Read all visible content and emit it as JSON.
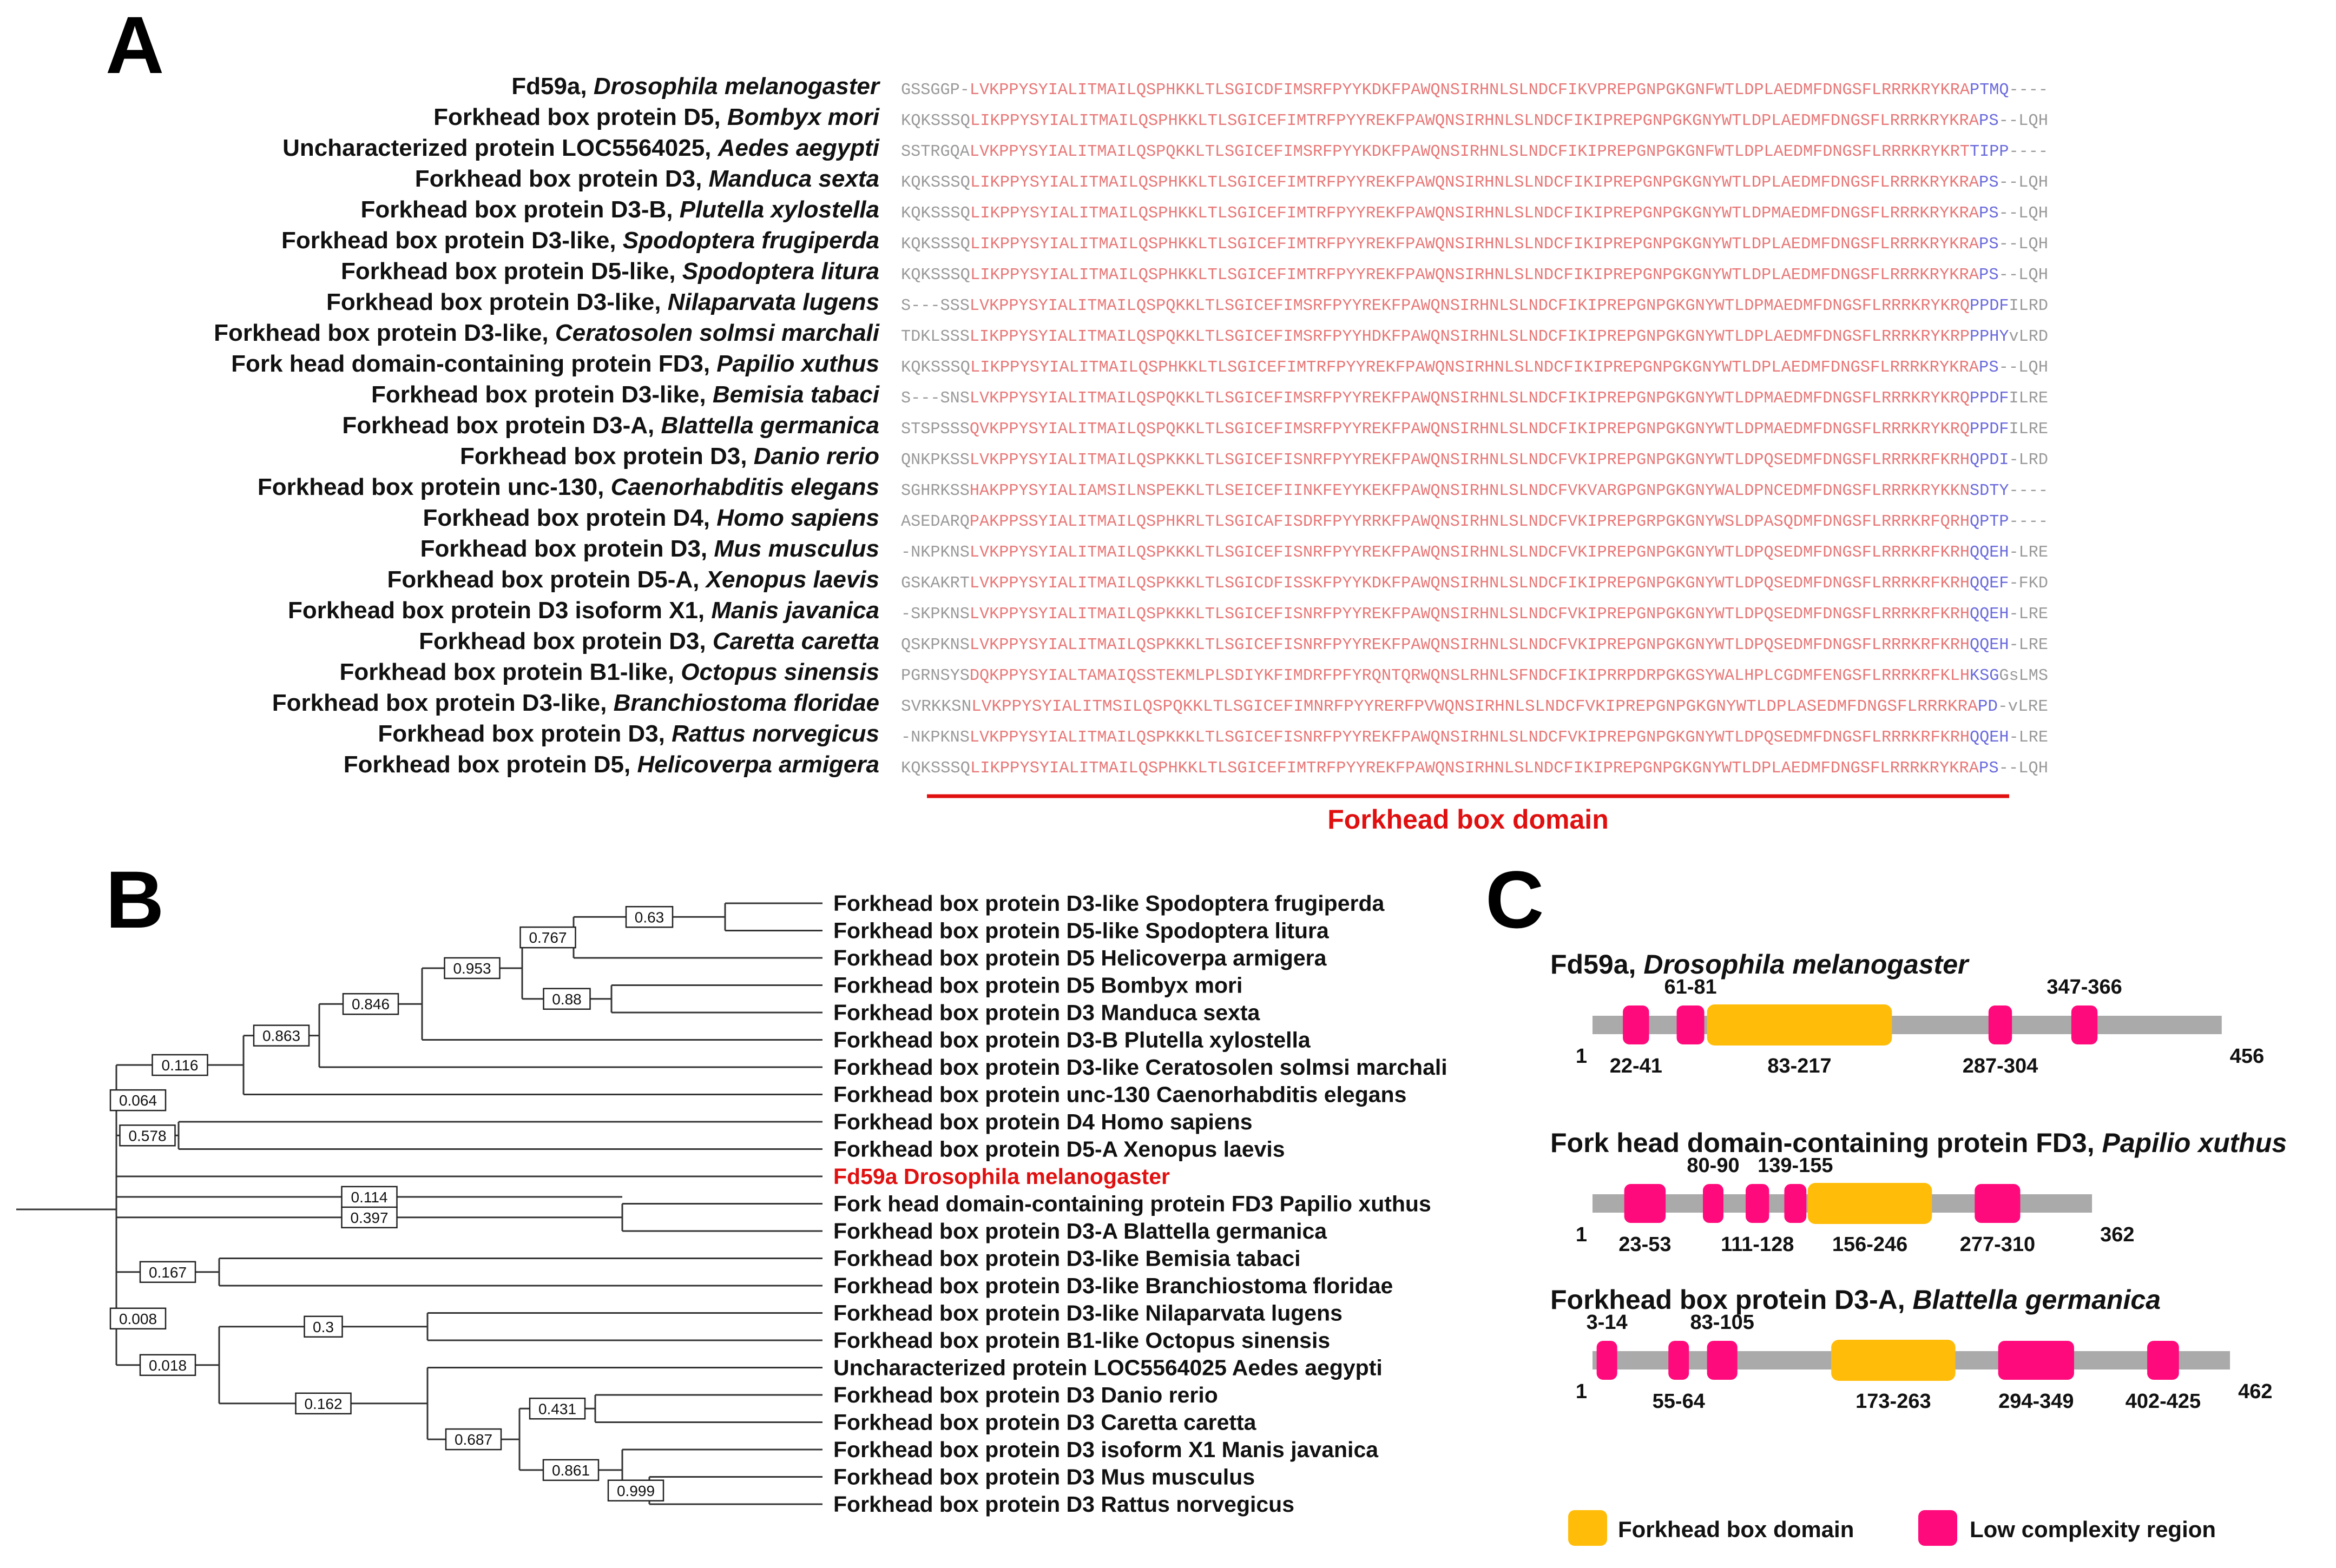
{
  "figure": {
    "panel_a_letter": "A",
    "panel_b_letter": "B",
    "panel_c_letter": "C",
    "colors": {
      "alignment_conserved": "#e87878",
      "alignment_variable": "#9a9a9a",
      "alignment_blue": "#6a6adc",
      "domain_bar": "#e01010",
      "forkhead_domain": "#ffbd0a",
      "low_complexity": "#ff0a7c",
      "protein_backbone": "#aaaaaa",
      "highlight_label": "#e01010"
    }
  },
  "alignment": {
    "domain_label": "Forkhead box domain",
    "rows": [
      {
        "name": "Fd59a,",
        "species": "Drosophila melanogaster",
        "pre": "GSSGGP-",
        "core": "LVKPPYSYIALITMAILQSPHKKLTLSGICDFIMSRFPYYKDKFPAWQNSIRHNLSLNDCFIKVPREPGNPGKGNFWTLDPLAEDMFDNGSFLRRRKRYKRA",
        "blue": "PTMQ",
        "post": "----"
      },
      {
        "name": "Forkhead box protein D5,",
        "species": "Bombyx mori",
        "pre": "KQKSSSQ",
        "core": "LIKPPYSYIALITMAILQSPHKKLTLSGICEFIMTRFPYYREKFPAWQNSIRHNLSLNDCFIKIPREPGNPGKGNYWTLDPLAEDMFDNGSFLRRRKRYKRA",
        "blue": "PS",
        "post": "--LQH"
      },
      {
        "name": "Uncharacterized protein LOC5564025,",
        "species": "Aedes aegypti",
        "pre": "SSTRGQA",
        "core": "LVKPPYSYIALITMAILQSPQKKLTLSGICEFIMSRFPYYKDKFPAWQNSIRHNLSLNDCFIKIPREPGNPGKGNFWTLDPLAEDMFDNGSFLRRRKRYKRT",
        "blue": "TIPP",
        "post": "----"
      },
      {
        "name": "Forkhead box protein D3,",
        "species": "Manduca sexta",
        "pre": "KQKSSSQ",
        "core": "LIKPPYSYIALITMAILQSPHKKLTLSGICEFIMTRFPYYREKFPAWQNSIRHNLSLNDCFIKIPREPGNPGKGNYWTLDPLAEDMFDNGSFLRRRKRYKRA",
        "blue": "PS",
        "post": "--LQH"
      },
      {
        "name": "Forkhead box protein D3-B,",
        "species": "Plutella xylostella",
        "pre": "KQKSSSQ",
        "core": "LIKPPYSYIALITMAILQSPHKKLTLSGICEFIMTRFPYYREKFPAWQNSIRHNLSLNDCFIKIPREPGNPGKGNYWTLDPMAEDMFDNGSFLRRRKRYKRA",
        "blue": "PS",
        "post": "--LQH"
      },
      {
        "name": "Forkhead box protein D3-like,",
        "species": "Spodoptera frugiperda",
        "pre": "KQKSSSQ",
        "core": "LIKPPYSYIALITMAILQSPHKKLTLSGICEFIMTRFPYYREKFPAWQNSIRHNLSLNDCFIKIPREPGNPGKGNYWTLDPLAEDMFDNGSFLRRRKRYKRA",
        "blue": "PS",
        "post": "--LQH"
      },
      {
        "name": "Forkhead box protein D5-like,",
        "species": "Spodoptera litura",
        "pre": "KQKSSSQ",
        "core": "LIKPPYSYIALITMAILQSPHKKLTLSGICEFIMTRFPYYREKFPAWQNSIRHNLSLNDCFIKIPREPGNPGKGNYWTLDPLAEDMFDNGSFLRRRKRYKRA",
        "blue": "PS",
        "post": "--LQH"
      },
      {
        "name": "Forkhead box protein D3-like,",
        "species": "Nilaparvata lugens",
        "pre": "S---SSS",
        "core": "LVKPPYSYIALITMAILQSPQKKLTLSGICEFIMSRFPYYREKFPAWQNSIRHNLSLNDCFIKIPREPGNPGKGNYWTLDPMAEDMFDNGSFLRRRKRYKRQ",
        "blue": "PPDF",
        "post": "ILRD"
      },
      {
        "name": "Forkhead box protein D3-like,",
        "species": "Ceratosolen solmsi marchali",
        "pre": "TDKLSSS",
        "core": "LIKPPYSYIALITMAILQSPQKKLTLSGICEFIMSRFPYYHDKFPAWQNSIRHNLSLNDCFIKIPREPGNPGKGNYWTLDPLAEDMFDNGSFLRRRKRYKRP",
        "blue": "PPHY",
        "post": "vLRD"
      },
      {
        "name": "Fork head domain-containing protein FD3,",
        "species": "Papilio xuthus",
        "pre": "KQKSSSQ",
        "core": "LIKPPYSYIALITMAILQSPHKKLTLSGICEFIMTRFPYYREKFPAWQNSIRHNLSLNDCFIKIPREPGNPGKGNYWTLDPLAEDMFDNGSFLRRRKRYKRA",
        "blue": "PS",
        "post": "--LQH"
      },
      {
        "name": "Forkhead box protein D3-like,",
        "species": "Bemisia tabaci",
        "pre": "S---SNS",
        "core": "LVKPPYSYIALITMAILQSPQKKLTLSGICEFIMSRFPYYREKFPAWQNSIRHNLSLNDCFIKIPREPGNPGKGNYWTLDPMAEDMFDNGSFLRRRKRYKRQ",
        "blue": "PPDF",
        "post": "ILRE"
      },
      {
        "name": "Forkhead box protein D3-A,",
        "species": "Blattella germanica",
        "pre": "STSPSSS",
        "core": "QVKPPYSYIALITMAILQSPQKKLTLSGICEFIMSRFPYYREKFPAWQNSIRHNLSLNDCFIKIPREPGNPGKGNYWTLDPMAEDMFDNGSFLRRRKRYKRQ",
        "blue": "PPDF",
        "post": "ILRE"
      },
      {
        "name": "Forkhead box protein D3,",
        "species": "Danio rerio",
        "pre": "QNKPKSS",
        "core": "LVKPPYSYIALITMAILQSPKKKLTLSGICEFISNRFPYYREKFPAWQNSIRHNLSLNDCFVKIPREPGNPGKGNYWTLDPQSEDMFDNGSFLRRRKRFKRH",
        "blue": "QPDI",
        "post": "-LRD"
      },
      {
        "name": "Forkhead box protein unc-130,",
        "species": "Caenorhabditis elegans",
        "pre": "SGHRKSS",
        "core": "HAKPPYSYIALIAMSILNSPEKKLTLSEICEFIINKFEYYKEKFPAWQNSIRHNLSLNDCFVKVARGPGNPGKGNYWALDPNCEDMFDNGSFLRRRKRYKKN",
        "blue": "SDTY",
        "post": "----"
      },
      {
        "name": "Forkhead box protein D4,",
        "species": "Homo sapiens",
        "pre": "ASEDARQ",
        "core": "PAKPPSSYIALITMAILQSPHKRLTLSGICAFISDRFPYYRRKFPAWQNSIRHNLSLNDCFVKIPREPGRPGKGNYWSLDPASQDMFDNGSFLRRRKRFQRH",
        "blue": "QPTP",
        "post": "----"
      },
      {
        "name": "Forkhead box protein D3,",
        "species": "Mus musculus",
        "pre": "-NKPKNS",
        "core": "LVKPPYSYIALITMAILQSPKKKLTLSGICEFISNRFPYYREKFPAWQNSIRHNLSLNDCFVKIPREPGNPGKGNYWTLDPQSEDMFDNGSFLRRRKRFKRH",
        "blue": "QQEH",
        "post": "-LRE"
      },
      {
        "name": "Forkhead box protein D5-A,",
        "species": "Xenopus laevis",
        "pre": "GSKAKRT",
        "core": "LVKPPYSYIALITMAILQSPKKKLTLSGICDFISSKFPYYKDKFPAWQNSIRHNLSLNDCFIKIPREPGNPGKGNYWTLDPQSEDMFDNGSFLRRRKRFKRH",
        "blue": "QQEF",
        "post": "-FKD"
      },
      {
        "name": "Forkhead box protein D3 isoform X1,",
        "species": "Manis javanica",
        "pre": "-SKPKNS",
        "core": "LVKPPYSYIALITMAILQSPKKKLTLSGICEFISNRFPYYREKFPAWQNSIRHNLSLNDCFVKIPREPGNPGKGNYWTLDPQSEDMFDNGSFLRRRKRFKRH",
        "blue": "QQEH",
        "post": "-LRE"
      },
      {
        "name": "Forkhead box protein D3,",
        "species": "Caretta caretta",
        "pre": "QSKPKNS",
        "core": "LVKPPYSYIALITMAILQSPKKKLTLSGICEFISNRFPYYREKFPAWQNSIRHNLSLNDCFVKIPREPGNPGKGNYWTLDPQSEDMFDNGSFLRRRKRFKRH",
        "blue": "QQEH",
        "post": "-LRE"
      },
      {
        "name": "Forkhead box protein B1-like,",
        "species": "Octopus sinensis",
        "pre": "PGRNSYS",
        "core": "DQKPPYSYIALTAMAIQSSTEKMLPLSDIYKFIMDRFPFYRQNTQRWQNSLRHNLSFNDCFIKIPRRPDRPGKGSYWALHPLCGDMFENGSFLRRRKRFKLH",
        "blue": "KSG",
        "post": "GsLMS"
      },
      {
        "name": "Forkhead box protein D3-like,",
        "species": "Branchiostoma floridae",
        "pre": "SVRKKSN",
        "core": "LVKPPYSYIALITMSILQSPQKKLTLSGICEFIMNRFPYYRERFPVWQNSIRHNLSLNDCFVKIPREPGNPGKGNYWTLDPLASEDMFDNGSFLRRRKRA",
        "blue": "PD",
        "post": "-vLRE"
      },
      {
        "name": "Forkhead box protein D3,",
        "species": "Rattus norvegicus",
        "pre": "-NKPKNS",
        "core": "LVKPPYSYIALITMAILQSPKKKLTLSGICEFISNRFPYYREKFPAWQNSIRHNLSLNDCFVKIPREPGNPGKGNYWTLDPQSEDMFDNGSFLRRRKRFKRH",
        "blue": "QQEH",
        "post": "-LRE"
      },
      {
        "name": "Forkhead box protein D5,",
        "species": "Helicoverpa armigera",
        "pre": "KQKSSSQ",
        "core": "LIKPPYSYIALITMAILQSPHKKLTLSGICEFIMTRFPYYREKFPAWQNSIRHNLSLNDCFIKIPREPGNPGKGNYWTLDPLAEDMFDNGSFLRRRKRYKRA",
        "blue": "PS",
        "post": "--LQH"
      }
    ]
  },
  "tree": {
    "leaves": [
      "Forkhead box protein D3-like Spodoptera frugiperda",
      "Forkhead box protein D5-like Spodoptera litura",
      "Forkhead box protein D5 Helicoverpa armigera",
      "Forkhead box protein D5 Bombyx mori",
      "Forkhead box protein D3 Manduca sexta",
      "Forkhead box protein D3-B Plutella xylostella",
      "Forkhead box protein D3-like Ceratosolen solmsi marchali",
      "Forkhead box protein unc-130 Caenorhabditis elegans",
      "Forkhead box protein D4 Homo sapiens",
      "Forkhead box protein D5-A Xenopus laevis",
      "Fd59a Drosophila melanogaster",
      "Fork head domain-containing protein FD3 Papilio xuthus",
      "Forkhead box protein D3-A Blattella germanica",
      "Forkhead box protein D3-like Bemisia tabaci",
      "Forkhead box protein D3-like Branchiostoma floridae",
      "Forkhead box protein D3-like Nilaparvata lugens",
      "Forkhead box protein B1-like Octopus sinensis",
      "Uncharacterized protein LOC5564025 Aedes aegypti",
      "Forkhead box protein D3 Danio rerio",
      "Forkhead box protein D3 Caretta caretta",
      "Forkhead box protein D3 isoform X1 Manis javanica",
      "Forkhead box protein D3 Mus musculus",
      "Forkhead box protein D3 Rattus norvegicus"
    ],
    "highlight_index": 10,
    "support_values": [
      "0.63",
      "0.767",
      "0.953",
      "0.88",
      "0.846",
      "0.863",
      "0.116",
      "0.064",
      "0.578",
      "0.114",
      "0.397",
      "0.167",
      "0.008",
      "0.3",
      "0.018",
      "0.162",
      "0.431",
      "0.687",
      "0.861",
      "0.999"
    ]
  },
  "architecture": {
    "legend": {
      "forkhead": "Forkhead box domain",
      "low_complexity": "Low complexity region"
    },
    "proteins": [
      {
        "name": "Fd59a,",
        "species": "Drosophila melanogaster",
        "length": 456,
        "start_label": "1",
        "end_label": "456",
        "forkhead": {
          "start": 83,
          "end": 217,
          "label": "83-217"
        },
        "lcr": [
          {
            "start": 22,
            "end": 41,
            "label": "22-41",
            "pos": "below"
          },
          {
            "start": 61,
            "end": 81,
            "label": "61-81",
            "pos": "above"
          },
          {
            "start": 287,
            "end": 304,
            "label": "287-304",
            "pos": "below"
          },
          {
            "start": 347,
            "end": 366,
            "label": "347-366",
            "pos": "above"
          }
        ]
      },
      {
        "name": "Fork head domain-containing protein FD3,",
        "species": "Papilio xuthus",
        "length": 362,
        "start_label": "1",
        "end_label": "362",
        "forkhead": {
          "start": 156,
          "end": 246,
          "label": "156-246"
        },
        "lcr": [
          {
            "start": 23,
            "end": 53,
            "label": "23-53",
            "pos": "below"
          },
          {
            "start": 80,
            "end": 90,
            "label": "80-90",
            "pos": "above"
          },
          {
            "start": 111,
            "end": 128,
            "label": "111-128",
            "pos": "below"
          },
          {
            "start": 139,
            "end": 155,
            "label": "139-155",
            "pos": "above"
          },
          {
            "start": 277,
            "end": 310,
            "label": "277-310",
            "pos": "below"
          }
        ]
      },
      {
        "name": "Forkhead box protein D3-A,",
        "species": "Blattella germanica",
        "length": 462,
        "start_label": "1",
        "end_label": "462",
        "forkhead": {
          "start": 173,
          "end": 263,
          "label": "173-263"
        },
        "lcr": [
          {
            "start": 3,
            "end": 14,
            "label": "3-14",
            "pos": "above"
          },
          {
            "start": 55,
            "end": 64,
            "label": "55-64",
            "pos": "below"
          },
          {
            "start": 83,
            "end": 105,
            "label": "83-105",
            "pos": "above"
          },
          {
            "start": 294,
            "end": 349,
            "label": "294-349",
            "pos": "below"
          },
          {
            "start": 402,
            "end": 425,
            "label": "402-425",
            "pos": "below"
          }
        ]
      }
    ]
  }
}
